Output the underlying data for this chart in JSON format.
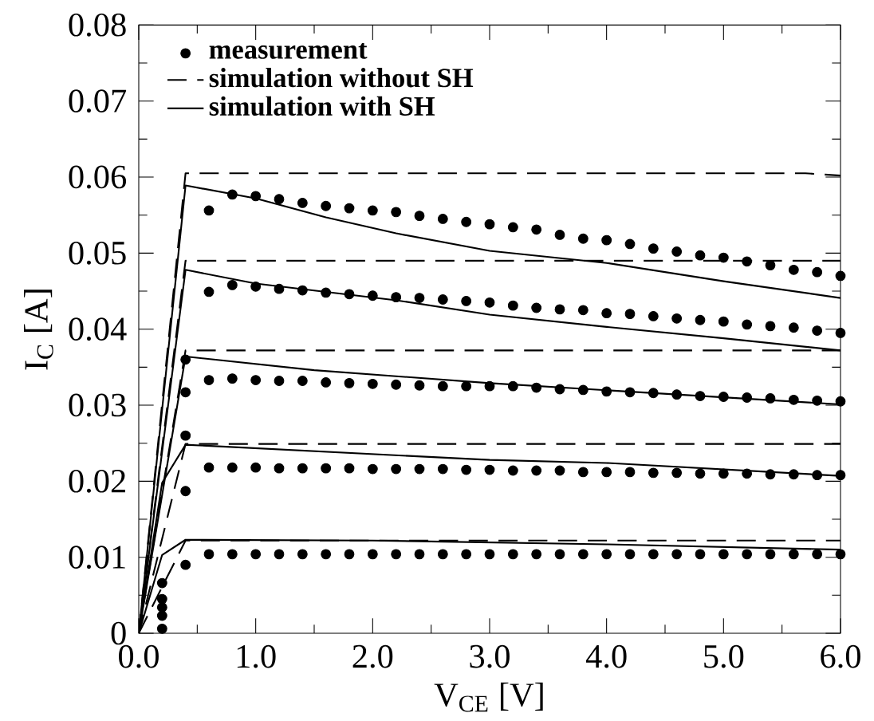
{
  "chart_data": {
    "type": "line",
    "xlabel": "V$_{CE}$ [V]",
    "ylabel": "I$_{C}$ [A]",
    "xlim": [
      0,
      6
    ],
    "ylim": [
      0,
      0.08
    ],
    "xticks": [
      {
        "value": 0,
        "label": "0.0"
      },
      {
        "value": 1,
        "label": "1.0"
      },
      {
        "value": 2,
        "label": "2.0"
      },
      {
        "value": 3,
        "label": "3.0"
      },
      {
        "value": 4,
        "label": "4.0"
      },
      {
        "value": 5,
        "label": "5.0"
      },
      {
        "value": 6,
        "label": "6.0"
      }
    ],
    "yticks": [
      0,
      0.01,
      0.02,
      0.03,
      0.04,
      0.05,
      0.06,
      0.07,
      0.08
    ],
    "legend": "top left",
    "grid": false,
    "x": [
      0.2,
      0.4,
      0.6,
      0.8,
      1.0,
      1.2,
      1.4,
      1.6,
      1.8,
      2.0,
      2.2,
      2.4,
      2.6,
      2.8,
      3.0,
      3.2,
      3.4,
      3.6,
      3.8,
      4.0,
      4.2,
      4.4,
      4.6,
      4.8,
      5.0,
      5.2,
      5.4,
      5.6,
      5.8,
      6.0
    ],
    "series": [
      {
        "type": "scatter",
        "marker": "circle",
        "name": "measurement",
        "color": "#000000",
        "values": [
          0.0006,
          0.009,
          0.0104,
          0.0104,
          0.0104,
          0.0104,
          0.0104,
          0.0104,
          0.0104,
          0.0104,
          0.0104,
          0.0104,
          0.0104,
          0.0104,
          0.0104,
          0.0104,
          0.0104,
          0.0104,
          0.0104,
          0.0104,
          0.0104,
          0.0104,
          0.0104,
          0.0104,
          0.0104,
          0.0104,
          0.0104,
          0.0104,
          0.0104,
          0.0104
        ]
      },
      {
        "type": "scatter",
        "marker": "circle",
        "color": "#000000",
        "values": [
          0.0023,
          0.0187,
          0.0218,
          0.0218,
          0.0218,
          0.0217,
          0.0217,
          0.0217,
          0.0217,
          0.0216,
          0.0216,
          0.0216,
          0.0216,
          0.0215,
          0.0215,
          0.0214,
          0.0214,
          0.0214,
          0.0212,
          0.0212,
          0.0212,
          0.0211,
          0.0211,
          0.021,
          0.021,
          0.021,
          0.0209,
          0.0209,
          0.0208,
          0.0208
        ]
      },
      {
        "type": "scatter",
        "marker": "circle",
        "color": "#000000",
        "values": [
          0.0034,
          0.026,
          0.0333,
          0.0335,
          0.0333,
          0.0332,
          0.0332,
          0.033,
          0.0329,
          0.0328,
          0.0327,
          0.0326,
          0.0325,
          0.0325,
          0.0325,
          0.0325,
          0.0323,
          0.0321,
          0.032,
          0.0318,
          0.0317,
          0.0316,
          0.0314,
          0.0312,
          0.0311,
          0.031,
          0.0309,
          0.0307,
          0.0306,
          0.0305
        ]
      },
      {
        "type": "scatter",
        "marker": "circle",
        "color": "#000000",
        "values": [
          0.0045,
          0.0317,
          0.0449,
          0.0458,
          0.0456,
          0.0453,
          0.0451,
          0.0448,
          0.0446,
          0.0444,
          0.0442,
          0.0441,
          0.0439,
          0.0437,
          0.0435,
          0.0431,
          0.0428,
          0.0426,
          0.0425,
          0.0421,
          0.042,
          0.0417,
          0.0414,
          0.0412,
          0.041,
          0.0406,
          0.0404,
          0.0402,
          0.0398,
          0.0395
        ]
      },
      {
        "type": "scatter",
        "marker": "circle",
        "color": "#000000",
        "values": [
          0.0066,
          0.036,
          0.0556,
          0.0577,
          0.0575,
          0.0571,
          0.0566,
          0.0562,
          0.0559,
          0.0556,
          0.0554,
          0.0549,
          0.0545,
          0.0541,
          0.0538,
          0.0534,
          0.0531,
          0.0524,
          0.0519,
          0.0517,
          0.0512,
          0.0506,
          0.0502,
          0.0497,
          0.0494,
          0.0489,
          0.0484,
          0.0478,
          0.0475,
          0.047
        ]
      },
      {
        "type": "line",
        "marker": "none",
        "line_style": "dashed",
        "name": "simulation without SH",
        "color": "#000000",
        "x": [
          0,
          0.4,
          6.0
        ],
        "values": [
          0,
          0.0122,
          0.0122
        ]
      },
      {
        "type": "line",
        "marker": "none",
        "line_style": "dashed",
        "color": "#000000",
        "x": [
          0,
          0.4,
          6.0
        ],
        "values": [
          0,
          0.0249,
          0.0249
        ]
      },
      {
        "type": "line",
        "marker": "none",
        "line_style": "dashed",
        "color": "#000000",
        "x": [
          0,
          0.4,
          6.0
        ],
        "values": [
          0,
          0.0372,
          0.0372
        ]
      },
      {
        "type": "line",
        "marker": "none",
        "line_style": "dashed",
        "color": "#000000",
        "x": [
          0,
          0.4,
          6.0
        ],
        "values": [
          0,
          0.049,
          0.049
        ]
      },
      {
        "type": "line",
        "marker": "none",
        "line_style": "dashed",
        "color": "#000000",
        "x": [
          0,
          0.4,
          5.7,
          6.0
        ],
        "values": [
          0,
          0.0605,
          0.0605,
          0.0602
        ]
      },
      {
        "type": "line",
        "marker": "none",
        "line_style": "solid",
        "name": "simulation with SH",
        "color": "#000000",
        "x": [
          0,
          0.2,
          0.4,
          2.0,
          4.0,
          6.0
        ],
        "values": [
          0,
          0.0103,
          0.0123,
          0.0122,
          0.0117,
          0.011
        ]
      },
      {
        "type": "line",
        "marker": "none",
        "line_style": "solid",
        "color": "#000000",
        "x": [
          0,
          0.2,
          0.4,
          3.0,
          4.0,
          6.0
        ],
        "values": [
          0,
          0.0198,
          0.0248,
          0.0228,
          0.0224,
          0.0207
        ]
      },
      {
        "type": "line",
        "marker": "none",
        "line_style": "solid",
        "color": "#000000",
        "x": [
          0,
          0.4,
          1.5,
          3.0,
          4.5,
          6.0
        ],
        "values": [
          0,
          0.0364,
          0.0346,
          0.0329,
          0.0315,
          0.0301
        ]
      },
      {
        "type": "line",
        "marker": "none",
        "line_style": "solid",
        "color": "#000000",
        "x": [
          0,
          0.4,
          1.0,
          1.6,
          2.2,
          3.0,
          4.0,
          5.0,
          6.0
        ],
        "values": [
          0,
          0.0478,
          0.046,
          0.0449,
          0.0438,
          0.0419,
          0.0403,
          0.0388,
          0.0372
        ]
      },
      {
        "type": "line",
        "marker": "none",
        "line_style": "solid",
        "color": "#000000",
        "x": [
          0,
          0.4,
          1.0,
          1.6,
          2.2,
          3.0,
          4.0,
          5.0,
          6.0
        ],
        "values": [
          0,
          0.0589,
          0.0572,
          0.0547,
          0.0526,
          0.0503,
          0.0487,
          0.0463,
          0.0441
        ]
      }
    ]
  }
}
